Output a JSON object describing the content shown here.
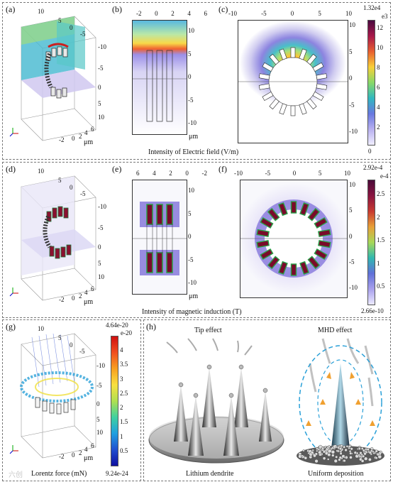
{
  "panels": {
    "a": {
      "label": "(a)"
    },
    "b": {
      "label": "(b)"
    },
    "c": {
      "label": "(c)"
    },
    "d": {
      "label": "(d)"
    },
    "e": {
      "label": "(e)"
    },
    "f": {
      "label": "(f)"
    },
    "g": {
      "label": "(g)"
    },
    "h": {
      "label": "(h)"
    }
  },
  "row1": {
    "caption": "Intensity of Electric field (V/m)",
    "cbar": {
      "max": "1.32e4",
      "unit": "e3",
      "ticks": [
        "12",
        "10",
        "8",
        "6",
        "4",
        "2"
      ],
      "min": "0"
    },
    "b_xticks": [
      "-2",
      "0",
      "2",
      "4",
      "6"
    ],
    "b_yticks": [
      "10",
      "5",
      "0",
      "-5",
      "-10"
    ],
    "c_xticks": [
      "-10",
      "-5",
      "0",
      "5",
      "10"
    ],
    "c_yticks": [
      "10",
      "5",
      "0",
      "-5",
      "-10"
    ],
    "a_ticks": {
      "t1": "10",
      "t2": "5",
      "t3": "0",
      "t4": "-5",
      "t5": "-10",
      "r1": "-10",
      "r2": "-5",
      "r3": "0",
      "r4": "5",
      "r5": "10",
      "b1": "-2",
      "b2": "0",
      "b3": "2",
      "b4": "4",
      "b5": "6",
      "unit": "μm"
    },
    "b_unit": "μm"
  },
  "row2": {
    "caption": "Intensity of magnetic induction (T)",
    "cbar": {
      "max": "2.92e-4",
      "unit": "e-4",
      "ticks": [
        "2.5",
        "2",
        "1.5",
        "1",
        "0.5"
      ],
      "min": "2.66e-10"
    },
    "e_xticks": [
      "6",
      "4",
      "2",
      "0",
      "-2"
    ],
    "e_yticks": [
      "10",
      "5",
      "0",
      "-5",
      "-10"
    ],
    "f_xticks": [
      "-10",
      "-5",
      "0",
      "5",
      "10"
    ],
    "f_yticks": [
      "10",
      "5",
      "0",
      "-5",
      "-10"
    ],
    "d_ticks": {
      "t1": "10",
      "t2": "5",
      "t3": "0",
      "t4": "-5",
      "t5": "-10",
      "r1": "-10",
      "r2": "-5",
      "r3": "0",
      "r4": "5",
      "r5": "10",
      "b1": "-2",
      "b2": "0",
      "b3": "2",
      "b4": "4",
      "b5": "6",
      "unit": "μm"
    },
    "e_unit": "μm"
  },
  "row3": {
    "g_ticks": {
      "t1": "10",
      "t2": "5",
      "t3": "0",
      "t4": "-5",
      "t5": "-10",
      "r1": "-10",
      "r2": "-5",
      "r3": "0",
      "r4": "5",
      "r5": "10",
      "b1": "-2",
      "b2": "0",
      "b3": "2",
      "b4": "4",
      "b5": "6",
      "unit": "μm"
    },
    "g_caption": "Lorentz force (mN)",
    "g_cbar": {
      "max": "4.64e-20",
      "unit": "e-20",
      "ticks": [
        "4",
        "3.5",
        "3",
        "2.5",
        "2",
        "1.5",
        "1",
        "0.5"
      ],
      "min": "9.24e-24"
    },
    "h_tip": "Tip effect",
    "h_mhd": "MHD effect",
    "h_dendrite": "Lithium dendrite",
    "h_uniform": "Uniform deposition",
    "watermark": "六创"
  },
  "colors": {
    "rainbow_top": "#5c0a3c",
    "rainbow_mid": "#30c0b0",
    "rainbow_low": "#c8c0f0",
    "mag_top": "#7a0a2a",
    "mag_bottom": "#d8d4f4",
    "lorentz_top": "#c81414",
    "lorentz_bottom": "#1010c0"
  }
}
